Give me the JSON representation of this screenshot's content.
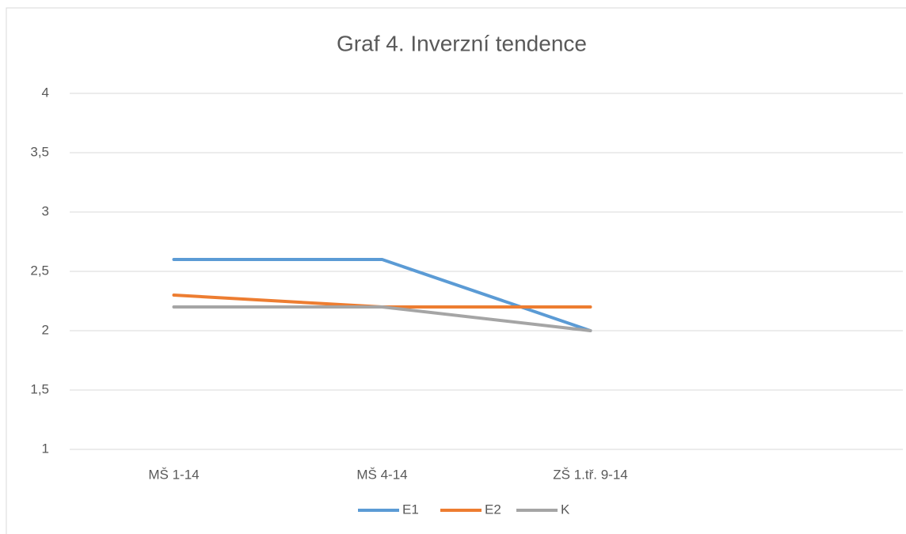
{
  "chart_data": {
    "type": "line",
    "title": "Graf 4. Inverzní tendence",
    "categories": [
      "MŠ 1-14",
      "MŠ 4-14",
      "ZŠ 1.tř. 9-14",
      null
    ],
    "series": [
      {
        "name": "E1",
        "color": "#5b9bd5",
        "values": [
          2.6,
          2.6,
          2.0,
          null
        ]
      },
      {
        "name": "E2",
        "color": "#ed7d31",
        "values": [
          2.3,
          2.2,
          2.2,
          null
        ]
      },
      {
        "name": "K",
        "color": "#a5a5a5",
        "values": [
          2.2,
          2.2,
          2.0,
          null
        ]
      }
    ],
    "ylim": [
      1,
      4
    ],
    "yticks": [
      1,
      {
        "value": 1.5,
        "label": "1,5"
      },
      2,
      {
        "value": 2.5,
        "label": "2,5"
      },
      3,
      {
        "value": 3.5,
        "label": "3,5"
      },
      4
    ],
    "grid": true,
    "legend": "bottom"
  }
}
